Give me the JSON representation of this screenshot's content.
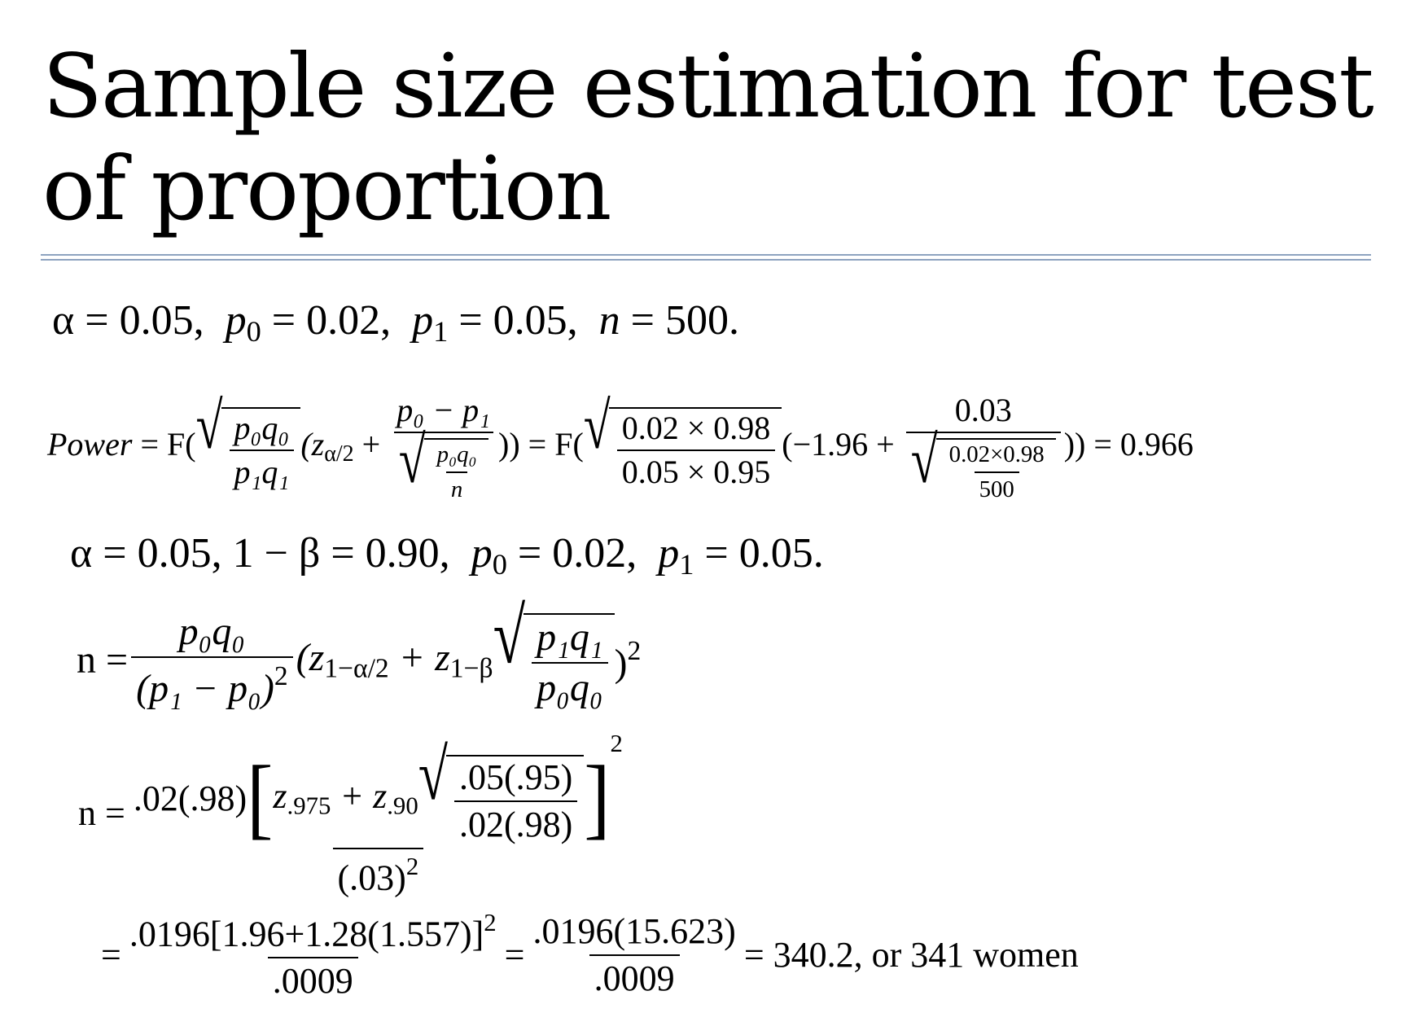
{
  "title": "Sample size estimation for test of proportion",
  "eq1": {
    "alpha": "α = 0.05,",
    "p0": "p",
    "p0_sub": "0",
    "p0_val": " = 0.02,",
    "p1": "p",
    "p1_sub": "1",
    "p1_val": " = 0.05,",
    "n": "n",
    "n_val": " = 500."
  },
  "eq2": {
    "lhs": "Power",
    "eq_F": " = F(",
    "frac1_num": "p₀q₀",
    "frac1_den": "p₁q₁",
    "z": "(z",
    "z_sub": "α/2",
    "plus": " + ",
    "frac2_num": "p₀ − p₁",
    "frac2_den_num": "p₀q₀",
    "frac2_den_den": "n",
    "close_eq_F": ")) = F(",
    "frac3_num": "0.02 × 0.98",
    "frac3_den": "0.05 × 0.95",
    "open": "(−1.96 + ",
    "frac4_num": "0.03",
    "frac4_den_num": "0.02×0.98",
    "frac4_den_den": "500",
    "result": ")) = 0.966"
  },
  "eq3": {
    "text_a": "α = 0.05,  1 − β = 0.90,",
    "p0": "p",
    "p0_sub": "0",
    "p0_val": " = 0.02,",
    "p1": "p",
    "p1_sub": "1",
    "p1_val": " = 0.05."
  },
  "eq4": {
    "lhs": "n =",
    "frac_num": "p₀q₀",
    "frac_den": "(p₁ − p₀)",
    "frac_den_sup": "2",
    "open": "(z",
    "z1_sub": "1−α/2",
    "plus": " + z",
    "z2_sub": "1−β",
    "sqrt_num": "p₁q₁",
    "sqrt_den": "p₀q₀",
    "close": ")",
    "close_sup": "2"
  },
  "eq5": {
    "lhs": "n =",
    "num_lead": ".02(.98)",
    "z975": "z",
    "z975_sub": ".975",
    "plus": " + z",
    "z90_sub": ".90",
    "sqrt_num": ".05(.95)",
    "sqrt_den": ".02(.98)",
    "bracket_sup": "2",
    "den": "(.03)",
    "den_sup": "2"
  },
  "eq6": {
    "eq": "=",
    "f1_num": ".0196[1.96+1.28(1.557)]",
    "f1_num_sup": "2",
    "f1_den": ".0009",
    "eq2": "=",
    "f2_num": ".0196(15.623)",
    "f2_den": ".0009",
    "result": "= 340.2,  or 341 women"
  }
}
